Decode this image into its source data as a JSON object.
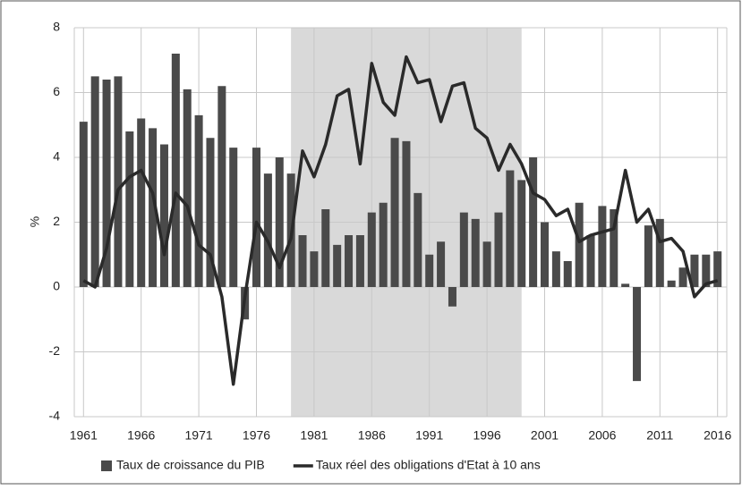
{
  "chart_data": {
    "type": "bar",
    "y_label": "%",
    "x": [
      1961,
      1962,
      1963,
      1964,
      1965,
      1966,
      1967,
      1968,
      1969,
      1970,
      1971,
      1972,
      1973,
      1974,
      1975,
      1976,
      1977,
      1978,
      1979,
      1980,
      1981,
      1982,
      1983,
      1984,
      1985,
      1986,
      1987,
      1988,
      1989,
      1990,
      1991,
      1992,
      1993,
      1994,
      1995,
      1996,
      1997,
      1998,
      1999,
      2000,
      2001,
      2002,
      2003,
      2004,
      2005,
      2006,
      2007,
      2008,
      2009,
      2010,
      2011,
      2012,
      2013,
      2014,
      2015,
      2016
    ],
    "series": [
      {
        "name": "Taux de croissance du PIB",
        "type": "bar",
        "color": "#4a4a4a",
        "values": [
          5.1,
          6.5,
          6.4,
          6.5,
          4.8,
          5.2,
          4.9,
          4.4,
          7.2,
          6.1,
          5.3,
          4.6,
          6.2,
          4.3,
          -1.0,
          4.3,
          3.5,
          4.0,
          3.5,
          1.6,
          1.1,
          2.4,
          1.3,
          1.6,
          1.6,
          2.3,
          2.6,
          4.6,
          4.5,
          2.9,
          1.0,
          1.4,
          -0.6,
          2.3,
          2.1,
          1.4,
          2.3,
          3.6,
          3.3,
          4.0,
          2.0,
          1.1,
          0.8,
          2.6,
          1.6,
          2.5,
          2.4,
          0.1,
          -2.9,
          1.9,
          2.1,
          0.2,
          0.6,
          1.0,
          1.0,
          1.1
        ]
      },
      {
        "name": "Taux réel des obligations d'Etat à 10 ans",
        "type": "line",
        "color": "#2a2a2a",
        "values": [
          0.2,
          0.0,
          1.2,
          3.0,
          3.4,
          3.6,
          2.9,
          1.0,
          2.9,
          2.5,
          1.3,
          1.0,
          -0.3,
          -3.0,
          -0.3,
          2.0,
          1.4,
          0.6,
          1.5,
          4.2,
          3.4,
          4.4,
          5.9,
          6.1,
          3.8,
          6.9,
          5.7,
          5.3,
          7.1,
          6.3,
          6.4,
          5.1,
          6.2,
          6.3,
          4.9,
          4.6,
          3.6,
          4.4,
          3.8,
          2.9,
          2.7,
          2.2,
          2.4,
          1.4,
          1.6,
          1.7,
          1.8,
          3.6,
          2.0,
          2.4,
          1.4,
          1.5,
          1.1,
          -0.3,
          0.1,
          0.2
        ]
      }
    ],
    "shaded_x": [
      1979,
      1999
    ],
    "shade_color": "#d9d9d9",
    "xlim": [
      1960.2,
      2016.8
    ],
    "xticks": [
      1961,
      1966,
      1971,
      1976,
      1981,
      1986,
      1991,
      1996,
      2001,
      2006,
      2011,
      2016
    ],
    "ylim": [
      -4,
      8
    ],
    "yticks": [
      -4,
      -2,
      0,
      2,
      4,
      6,
      8
    ],
    "grid": true,
    "legend": "bottom"
  }
}
